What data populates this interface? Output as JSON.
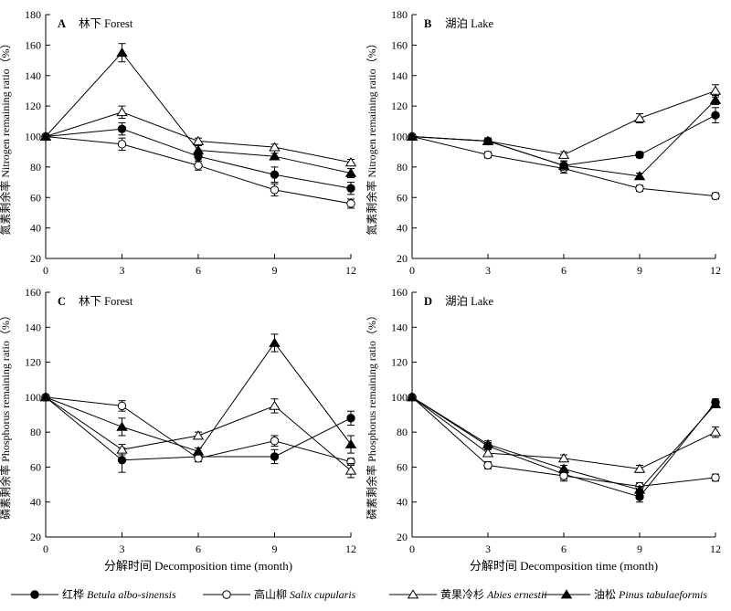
{
  "chart_data": [
    {
      "type": "line",
      "panel_label": "A",
      "title": "林下 Forest",
      "ylabel": "氮素剩余率 Nitrogen remaining ratio（%）",
      "xlabel": "",
      "x": [
        0,
        3,
        6,
        9,
        12
      ],
      "xlim": [
        0,
        12
      ],
      "ylim": [
        20,
        180
      ],
      "yticks": [
        20,
        40,
        60,
        80,
        100,
        120,
        140,
        160,
        180
      ],
      "series": [
        {
          "name": "红桦 Betula albo-sinensis",
          "values": [
            100,
            105,
            87,
            75,
            66
          ],
          "errors": [
            1,
            4,
            3,
            5,
            4
          ]
        },
        {
          "name": "高山柳 Salix cupularis",
          "values": [
            100,
            95,
            81,
            65,
            56
          ],
          "errors": [
            1,
            4,
            3,
            4,
            3
          ]
        },
        {
          "name": "黄果冷杉 Abies ernestii",
          "values": [
            100,
            116,
            97,
            93,
            83
          ],
          "errors": [
            1,
            4,
            2,
            2,
            2
          ]
        },
        {
          "name": "油松 Pinus tabulaeformis",
          "values": [
            100,
            155,
            91,
            87,
            76
          ],
          "errors": [
            1,
            6,
            3,
            2,
            3
          ]
        }
      ]
    },
    {
      "type": "line",
      "panel_label": "B",
      "title": "湖泊 Lake",
      "ylabel": "氮素剩余率 Nitrogen remaining ratio（%）",
      "xlabel": "",
      "x": [
        0,
        3,
        6,
        9,
        12
      ],
      "xlim": [
        0,
        12
      ],
      "ylim": [
        20,
        180
      ],
      "yticks": [
        20,
        40,
        60,
        80,
        100,
        120,
        140,
        160,
        180
      ],
      "series": [
        {
          "name": "红桦 Betula albo-sinensis",
          "values": [
            100,
            97,
            81,
            88,
            114
          ],
          "errors": [
            1,
            2,
            3,
            2,
            5
          ]
        },
        {
          "name": "高山柳 Salix cupularis",
          "values": [
            100,
            88,
            79,
            66,
            61
          ],
          "errors": [
            1,
            2,
            3,
            2,
            2
          ]
        },
        {
          "name": "黄果冷杉 Abies ernestii",
          "values": [
            100,
            97,
            88,
            112,
            130
          ],
          "errors": [
            1,
            2,
            2,
            3,
            4
          ]
        },
        {
          "name": "油松 Pinus tabulaeformis",
          "values": [
            100,
            97,
            81,
            74,
            124
          ],
          "errors": [
            1,
            2,
            3,
            2,
            3
          ]
        }
      ]
    },
    {
      "type": "line",
      "panel_label": "C",
      "title": "林下 Forest",
      "ylabel": "磷素剩余率 Phosphorus remaining ratio（%）",
      "xlabel": "分解时间 Decomposition time (month)",
      "x": [
        0,
        3,
        6,
        9,
        12
      ],
      "xlim": [
        0,
        12
      ],
      "ylim": [
        20,
        160
      ],
      "yticks": [
        20,
        40,
        60,
        80,
        100,
        120,
        140,
        160
      ],
      "series": [
        {
          "name": "红桦 Betula albo-sinensis",
          "values": [
            100,
            64,
            66,
            66,
            88
          ],
          "errors": [
            1,
            7,
            2,
            4,
            4
          ]
        },
        {
          "name": "高山柳 Salix cupularis",
          "values": [
            100,
            95,
            65,
            75,
            63
          ],
          "errors": [
            1,
            3,
            2,
            3,
            2
          ]
        },
        {
          "name": "黄果冷杉 Abies ernestii",
          "values": [
            100,
            70,
            78,
            95,
            58
          ],
          "errors": [
            1,
            3,
            2,
            4,
            4
          ]
        },
        {
          "name": "油松 Pinus tabulaeformis",
          "values": [
            100,
            83,
            69,
            131,
            73
          ],
          "errors": [
            1,
            5,
            2,
            5,
            5
          ]
        }
      ]
    },
    {
      "type": "line",
      "panel_label": "D",
      "title": "湖泊 Lake",
      "ylabel": "磷素剩余率 Phosphorus remaining ratio（%）",
      "xlabel": "分解时间 Decomposition time (month)",
      "x": [
        0,
        3,
        6,
        9,
        12
      ],
      "xlim": [
        0,
        12
      ],
      "ylim": [
        20,
        160
      ],
      "yticks": [
        20,
        40,
        60,
        80,
        100,
        120,
        140,
        160
      ],
      "series": [
        {
          "name": "红桦 Betula albo-sinensis",
          "values": [
            100,
            72,
            56,
            43,
            97
          ],
          "errors": [
            1,
            2,
            3,
            3,
            2
          ]
        },
        {
          "name": "高山柳 Salix cupularis",
          "values": [
            100,
            61,
            55,
            49,
            54
          ],
          "errors": [
            1,
            2,
            3,
            2,
            2
          ]
        },
        {
          "name": "黄果冷杉 Abies ernestii",
          "values": [
            100,
            68,
            65,
            59,
            80
          ],
          "errors": [
            1,
            2,
            2,
            2,
            3
          ]
        },
        {
          "name": "油松 Pinus tabulaeformis",
          "values": [
            100,
            73,
            59,
            47,
            96
          ],
          "errors": [
            1,
            2,
            2,
            2,
            2
          ]
        }
      ]
    }
  ],
  "legend": [
    {
      "cn": "红桦",
      "sci": "Betula albo-sinensis",
      "marker": "filled-circle"
    },
    {
      "cn": "高山柳",
      "sci": "Salix cupularis",
      "marker": "open-circle"
    },
    {
      "cn": "黄果冷杉",
      "sci": "Abies ernestii",
      "marker": "open-triangle"
    },
    {
      "cn": "油松",
      "sci": "Pinus tabulaeformis",
      "marker": "filled-triangle"
    }
  ]
}
